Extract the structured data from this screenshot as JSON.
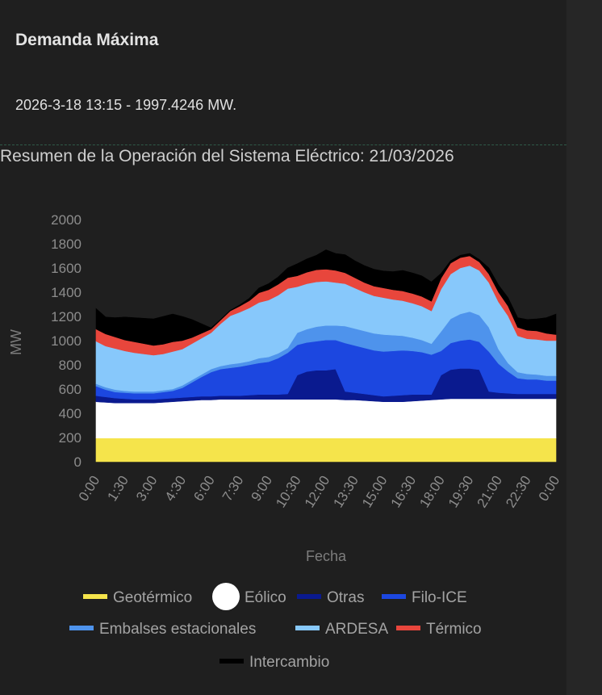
{
  "card": {
    "title": "Demanda Máxima",
    "value": "2026-3-18 13:15 - 1997.4246 MW."
  },
  "chart_data": {
    "type": "area",
    "stacked": true,
    "title": "Resumen de la Operación del Sistema Eléctrico: 21/03/2026",
    "xlabel": "Fecha",
    "ylabel": "MW",
    "ylim": [
      0,
      2000
    ],
    "yticks": [
      0,
      200,
      400,
      600,
      800,
      1000,
      1200,
      1400,
      1600,
      1800,
      2000
    ],
    "x": [
      "0:00",
      "0:30",
      "1:00",
      "1:30",
      "2:00",
      "2:30",
      "3:00",
      "3:30",
      "4:00",
      "4:30",
      "5:00",
      "5:30",
      "6:00",
      "6:30",
      "7:00",
      "7:30",
      "8:00",
      "8:30",
      "9:00",
      "9:30",
      "10:00",
      "10:30",
      "11:00",
      "11:30",
      "12:00",
      "12:30",
      "13:00",
      "13:30",
      "14:00",
      "14:30",
      "15:00",
      "15:30",
      "16:00",
      "16:30",
      "17:00",
      "17:30",
      "18:00",
      "18:30",
      "19:00",
      "19:30",
      "20:00",
      "20:30",
      "21:00",
      "21:30",
      "22:00",
      "22:30",
      "23:00",
      "23:30",
      "0:00"
    ],
    "xticks": [
      "0:00",
      "1:30",
      "3:00",
      "4:30",
      "6:00",
      "7:30",
      "9:00",
      "10:30",
      "12:00",
      "13:30",
      "15:00",
      "16:30",
      "18:00",
      "19:30",
      "21:00",
      "22:30",
      "0:00"
    ],
    "series": [
      {
        "name": "Geotérmico",
        "color": "#f5e44b",
        "values": [
          195,
          195,
          195,
          195,
          195,
          195,
          195,
          195,
          195,
          195,
          195,
          195,
          195,
          195,
          195,
          195,
          195,
          195,
          195,
          195,
          195,
          195,
          195,
          195,
          195,
          195,
          195,
          195,
          195,
          195,
          195,
          195,
          195,
          195,
          195,
          195,
          195,
          195,
          195,
          195,
          195,
          195,
          195,
          195,
          195,
          195,
          195,
          195,
          195
        ]
      },
      {
        "name": "Eólico",
        "color": "#ffffff",
        "values": [
          300,
          295,
          290,
          290,
          290,
          290,
          290,
          295,
          300,
          305,
          310,
          315,
          315,
          320,
          320,
          320,
          320,
          320,
          320,
          320,
          320,
          320,
          320,
          320,
          320,
          320,
          315,
          315,
          310,
          305,
          300,
          300,
          300,
          305,
          310,
          315,
          320,
          325,
          325,
          325,
          325,
          325,
          325,
          325,
          325,
          325,
          325,
          325,
          325
        ]
      },
      {
        "name": "Otras",
        "color": "#0a1a8f",
        "values": [
          50,
          45,
          40,
          35,
          30,
          30,
          30,
          30,
          30,
          30,
          30,
          30,
          30,
          30,
          30,
          30,
          35,
          40,
          40,
          40,
          45,
          200,
          230,
          240,
          240,
          250,
          70,
          60,
          55,
          50,
          45,
          50,
          55,
          55,
          50,
          45,
          200,
          240,
          250,
          250,
          240,
          60,
          50,
          45,
          40,
          40,
          40,
          40,
          40
        ]
      },
      {
        "name": "Filo-ICE",
        "color": "#1c47e0",
        "values": [
          80,
          60,
          50,
          50,
          50,
          50,
          50,
          55,
          60,
          80,
          120,
          160,
          200,
          220,
          230,
          240,
          250,
          260,
          270,
          300,
          340,
          250,
          240,
          240,
          250,
          240,
          400,
          390,
          380,
          370,
          370,
          370,
          370,
          360,
          350,
          330,
          200,
          220,
          230,
          240,
          230,
          330,
          240,
          180,
          130,
          120,
          120,
          110,
          110
        ]
      },
      {
        "name": "Embalses estacionales",
        "color": "#4e93ec",
        "values": [
          20,
          20,
          20,
          15,
          15,
          15,
          15,
          15,
          15,
          20,
          20,
          20,
          25,
          25,
          30,
          30,
          30,
          40,
          40,
          40,
          40,
          100,
          110,
          120,
          120,
          120,
          140,
          140,
          140,
          140,
          140,
          130,
          120,
          110,
          100,
          90,
          160,
          200,
          220,
          230,
          220,
          200,
          120,
          70,
          50,
          45,
          40,
          40,
          40
        ]
      },
      {
        "name": "ARDESA",
        "color": "#87c8fb",
        "values": [
          350,
          340,
          340,
          330,
          320,
          310,
          300,
          300,
          310,
          300,
          300,
          300,
          300,
          350,
          400,
          420,
          440,
          460,
          470,
          480,
          490,
          380,
          375,
          370,
          365,
          355,
          350,
          335,
          320,
          310,
          305,
          295,
          290,
          285,
          280,
          270,
          350,
          370,
          380,
          380,
          370,
          370,
          390,
          390,
          300,
          290,
          290,
          290,
          290
        ]
      },
      {
        "name": "Térmico",
        "color": "#e8463c",
        "values": [
          100,
          100,
          95,
          90,
          90,
          85,
          80,
          80,
          80,
          70,
          50,
          40,
          30,
          30,
          40,
          50,
          60,
          80,
          85,
          90,
          90,
          90,
          95,
          100,
          100,
          100,
          90,
          85,
          80,
          80,
          80,
          80,
          80,
          80,
          80,
          80,
          90,
          90,
          85,
          80,
          70,
          70,
          80,
          80,
          70,
          70,
          70,
          60,
          50
        ]
      },
      {
        "name": "Intercambio",
        "color": "#000000",
        "values": [
          170,
          140,
          160,
          190,
          200,
          210,
          220,
          230,
          230,
          200,
          150,
          80,
          10,
          5,
          5,
          10,
          20,
          40,
          50,
          60,
          80,
          100,
          110,
          120,
          160,
          140,
          150,
          140,
          140,
          140,
          140,
          150,
          170,
          170,
          170,
          160,
          40,
          20,
          20,
          20,
          20,
          50,
          60,
          70,
          80,
          90,
          100,
          130,
          170
        ]
      }
    ]
  }
}
